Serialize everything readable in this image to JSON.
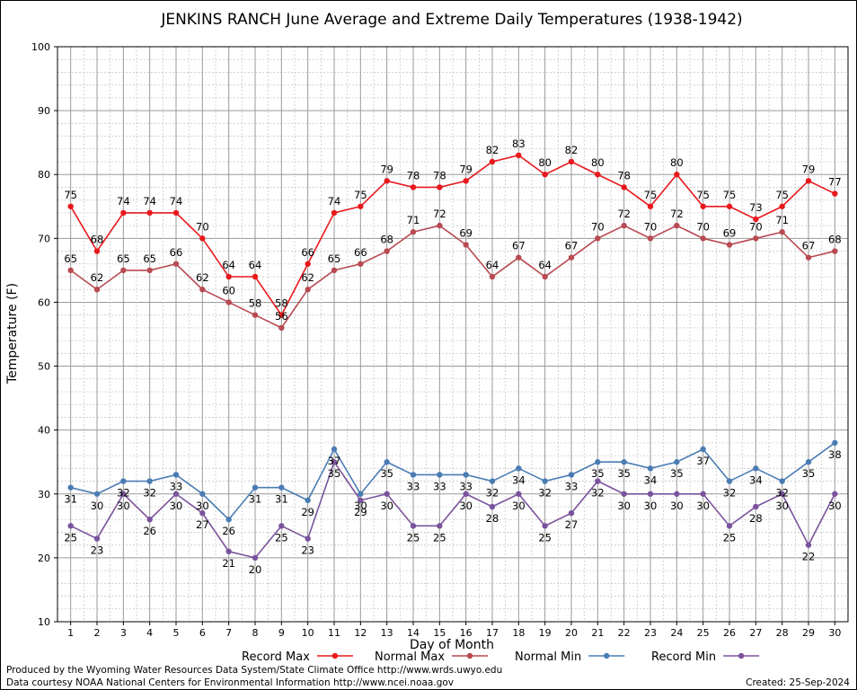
{
  "chart_data": {
    "type": "line",
    "title": "JENKINS RANCH June Average and Extreme Daily Temperatures (1938-1942)",
    "xlabel": "Day of Month",
    "ylabel": "Temperature (F)",
    "ylim": [
      10,
      100
    ],
    "yticks": [
      10,
      20,
      30,
      40,
      50,
      60,
      70,
      80,
      90,
      100
    ],
    "xlim": [
      0.5,
      30.5
    ],
    "x": [
      1,
      2,
      3,
      4,
      5,
      6,
      7,
      8,
      9,
      10,
      11,
      12,
      13,
      14,
      15,
      16,
      17,
      18,
      19,
      20,
      21,
      22,
      23,
      24,
      25,
      26,
      27,
      28,
      29,
      30
    ],
    "grid": true,
    "legend_placement": "bottom",
    "series": [
      {
        "name": "Record Max",
        "color": "#e8181c",
        "values": [
          75,
          68,
          74,
          74,
          74,
          70,
          64,
          64,
          58,
          66,
          74,
          75,
          79,
          78,
          78,
          79,
          82,
          83,
          80,
          82,
          80,
          78,
          75,
          80,
          75,
          75,
          73,
          75,
          79,
          77
        ]
      },
      {
        "name": "Normal Max",
        "color": "#b84a52",
        "values": [
          65,
          62,
          65,
          65,
          66,
          62,
          60,
          58,
          56,
          62,
          65,
          66,
          68,
          71,
          72,
          69,
          64,
          67,
          64,
          67,
          70,
          72,
          70,
          72,
          70,
          69,
          70,
          71,
          67,
          68
        ]
      },
      {
        "name": "Normal Min",
        "color": "#4a7cb4",
        "values": [
          31,
          30,
          32,
          32,
          33,
          30,
          26,
          31,
          31,
          29,
          37,
          30,
          35,
          33,
          33,
          33,
          32,
          34,
          32,
          33,
          35,
          35,
          34,
          35,
          37,
          32,
          34,
          32,
          35,
          38
        ]
      },
      {
        "name": "Record Min",
        "color": "#7a539c",
        "values": [
          25,
          23,
          30,
          26,
          30,
          27,
          21,
          20,
          25,
          23,
          35,
          29,
          30,
          25,
          25,
          30,
          28,
          30,
          25,
          27,
          32,
          30,
          30,
          30,
          30,
          25,
          28,
          30,
          22,
          30
        ]
      }
    ]
  },
  "footer": {
    "produced_by": "Produced by the Wyoming Water Resources Data System/State Climate Office http://www.wrds.uwyo.edu",
    "data_courtesy": "Data courtesy NOAA National Centers for Environmental Information http://www.ncei.noaa.gov",
    "created": "Created: 25-Sep-2024"
  }
}
